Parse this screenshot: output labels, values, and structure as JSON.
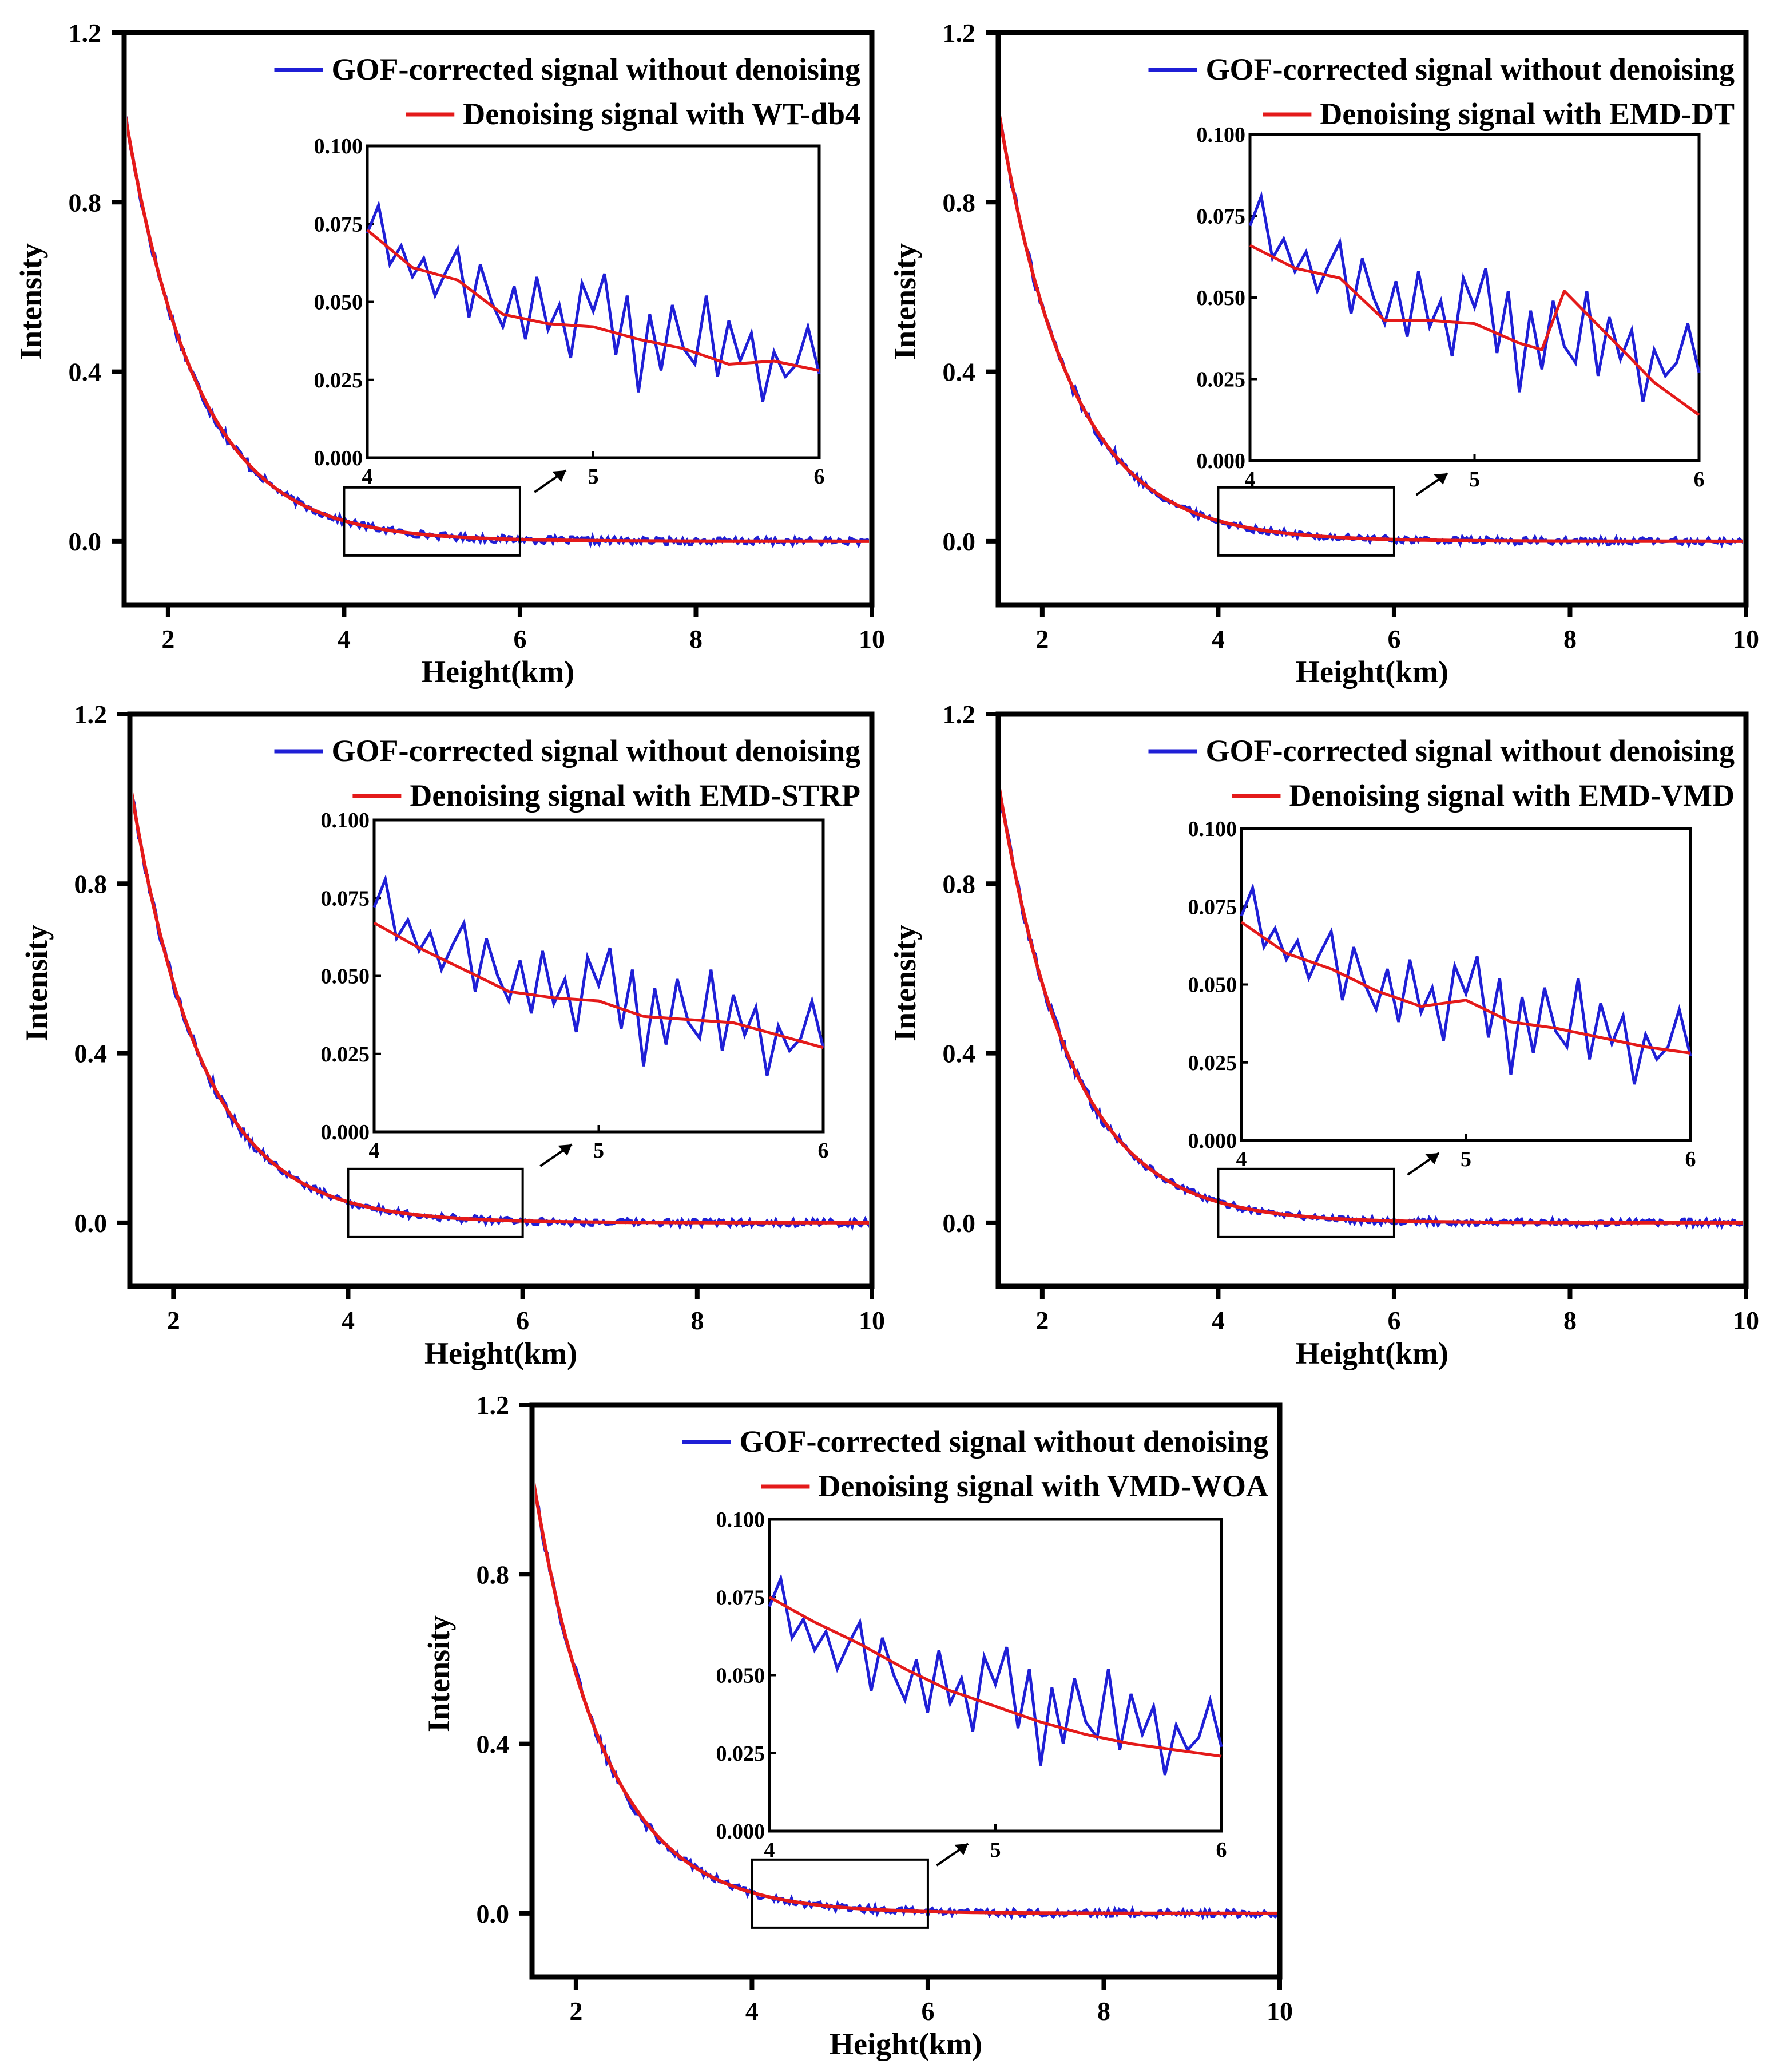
{
  "colors": {
    "raw": "#1f1fd6",
    "denoised": "#e41a1a",
    "axis": "#000000"
  },
  "chart_data": [
    {
      "type": "line",
      "xlabel": "Height(km)",
      "ylabel": "Intensity",
      "xlim": [
        1.5,
        10
      ],
      "ylim": [
        -0.15,
        1.2
      ],
      "xticks": [
        2,
        4,
        6,
        8,
        10
      ],
      "yticks": [
        0.0,
        0.4,
        0.8,
        1.2
      ],
      "zoom_box": {
        "x": [
          4,
          6
        ],
        "y": [
          0.0,
          0.1
        ]
      },
      "legend": {
        "position": "top-right",
        "entries": [
          "GOF-corrected signal without denoising",
          "Denoising signal with WT-db4"
        ]
      },
      "series": [
        {
          "name": "GOF-corrected signal without denoising",
          "color": "#1f1fd6",
          "decay": {
            "amplitude": 1.02,
            "rate": 1.22,
            "start": 1.5
          },
          "noise": 0.009
        },
        {
          "name": "Denoising signal with WT-db4",
          "color": "#e41a1a",
          "decay": {
            "amplitude": 1.02,
            "rate": 1.22,
            "start": 1.5
          }
        }
      ],
      "inset": {
        "xlim": [
          4,
          6
        ],
        "ylim": [
          0,
          0.1
        ],
        "xticks": [
          4,
          5,
          6
        ],
        "yticks": [
          0.0,
          0.025,
          0.05,
          0.075,
          0.1
        ],
        "ytick_labels": [
          "0.000",
          "0.025",
          "0.050",
          "0.075",
          "0.100"
        ],
        "raw": {
          "x": [
            4.0,
            4.05,
            4.1,
            4.15,
            4.2,
            4.25,
            4.3,
            4.35,
            4.4,
            4.45,
            4.5,
            4.55,
            4.6,
            4.65,
            4.7,
            4.75,
            4.8,
            4.85,
            4.9,
            4.95,
            5.0,
            5.05,
            5.1,
            5.15,
            5.2,
            5.25,
            5.3,
            5.35,
            5.4,
            5.45,
            5.5,
            5.55,
            5.6,
            5.65,
            5.7,
            5.75,
            5.8,
            5.85,
            5.9,
            5.95,
            6.0
          ],
          "y": [
            0.072,
            0.081,
            0.062,
            0.068,
            0.058,
            0.064,
            0.052,
            0.06,
            0.067,
            0.045,
            0.062,
            0.05,
            0.042,
            0.055,
            0.038,
            0.058,
            0.041,
            0.049,
            0.032,
            0.056,
            0.047,
            0.059,
            0.033,
            0.052,
            0.021,
            0.046,
            0.028,
            0.049,
            0.035,
            0.03,
            0.052,
            0.026,
            0.044,
            0.031,
            0.04,
            0.018,
            0.034,
            0.026,
            0.03,
            0.042,
            0.027
          ]
        },
        "smooth": {
          "x": [
            4.0,
            4.2,
            4.4,
            4.6,
            4.8,
            5.0,
            5.2,
            5.4,
            5.6,
            5.8,
            6.0
          ],
          "y": [
            0.073,
            0.061,
            0.057,
            0.046,
            0.043,
            0.042,
            0.038,
            0.035,
            0.03,
            0.031,
            0.028
          ]
        }
      }
    },
    {
      "type": "line",
      "xlabel": "Height(km)",
      "ylabel": "Intensity",
      "xlim": [
        1.5,
        10
      ],
      "ylim": [
        -0.15,
        1.2
      ],
      "xticks": [
        2,
        4,
        6,
        8,
        10
      ],
      "yticks": [
        0.0,
        0.4,
        0.8,
        1.2
      ],
      "zoom_box": {
        "x": [
          4,
          6
        ],
        "y": [
          0.0,
          0.1
        ]
      },
      "legend": {
        "position": "top-right",
        "entries": [
          "GOF-corrected signal without denoising",
          "Denoising signal with EMD-DT"
        ]
      },
      "series": [
        {
          "name": "GOF-corrected signal without denoising",
          "color": "#1f1fd6",
          "decay": {
            "amplitude": 1.02,
            "rate": 1.22,
            "start": 1.5
          },
          "noise": 0.009
        },
        {
          "name": "Denoising signal with EMD-DT",
          "color": "#e41a1a",
          "decay": {
            "amplitude": 1.02,
            "rate": 1.22,
            "start": 1.5
          }
        }
      ],
      "inset": {
        "xlim": [
          4,
          6
        ],
        "ylim": [
          0,
          0.1
        ],
        "xticks": [
          4,
          5,
          6
        ],
        "yticks": [
          0.0,
          0.025,
          0.05,
          0.075,
          0.1
        ],
        "ytick_labels": [
          "0.000",
          "0.025",
          "0.050",
          "0.075",
          "0.100"
        ],
        "raw": {
          "x": [
            4.0,
            4.05,
            4.1,
            4.15,
            4.2,
            4.25,
            4.3,
            4.35,
            4.4,
            4.45,
            4.5,
            4.55,
            4.6,
            4.65,
            4.7,
            4.75,
            4.8,
            4.85,
            4.9,
            4.95,
            5.0,
            5.05,
            5.1,
            5.15,
            5.2,
            5.25,
            5.3,
            5.35,
            5.4,
            5.45,
            5.5,
            5.55,
            5.6,
            5.65,
            5.7,
            5.75,
            5.8,
            5.85,
            5.9,
            5.95,
            6.0
          ],
          "y": [
            0.072,
            0.081,
            0.062,
            0.068,
            0.058,
            0.064,
            0.052,
            0.06,
            0.067,
            0.045,
            0.062,
            0.05,
            0.042,
            0.055,
            0.038,
            0.058,
            0.041,
            0.049,
            0.032,
            0.056,
            0.047,
            0.059,
            0.033,
            0.052,
            0.021,
            0.046,
            0.028,
            0.049,
            0.035,
            0.03,
            0.052,
            0.026,
            0.044,
            0.031,
            0.04,
            0.018,
            0.034,
            0.026,
            0.03,
            0.042,
            0.027
          ]
        },
        "smooth": {
          "x": [
            4.0,
            4.2,
            4.4,
            4.6,
            4.8,
            5.0,
            5.2,
            5.3,
            5.4,
            5.6,
            5.8,
            6.0
          ],
          "y": [
            0.066,
            0.059,
            0.056,
            0.043,
            0.043,
            0.042,
            0.036,
            0.034,
            0.052,
            0.038,
            0.024,
            0.014
          ]
        }
      }
    },
    {
      "type": "line",
      "xlabel": "Height(km)",
      "ylabel": "Intensity",
      "xlim": [
        1.5,
        10
      ],
      "ylim": [
        -0.15,
        1.2
      ],
      "xticks": [
        2,
        4,
        6,
        8,
        10
      ],
      "yticks": [
        0.0,
        0.4,
        0.8,
        1.2
      ],
      "zoom_box": {
        "x": [
          4,
          6
        ],
        "y": [
          0.0,
          0.1
        ]
      },
      "legend": {
        "position": "top-right",
        "entries": [
          "GOF-corrected signal without denoising",
          "Denoising signal with EMD-STRP"
        ]
      },
      "series": [
        {
          "name": "GOF-corrected signal without denoising",
          "color": "#1f1fd6",
          "decay": {
            "amplitude": 1.04,
            "rate": 1.22,
            "start": 1.5
          },
          "noise": 0.009
        },
        {
          "name": "Denoising signal with EMD-STRP",
          "color": "#e41a1a",
          "decay": {
            "amplitude": 1.04,
            "rate": 1.22,
            "start": 1.5
          }
        }
      ],
      "inset": {
        "xlim": [
          4,
          6
        ],
        "ylim": [
          0,
          0.1
        ],
        "xticks": [
          4,
          5,
          6
        ],
        "yticks": [
          0.0,
          0.025,
          0.05,
          0.075,
          0.1
        ],
        "ytick_labels": [
          "0.000",
          "0.025",
          "0.050",
          "0.075",
          "0.100"
        ],
        "raw": {
          "x": [
            4.0,
            4.05,
            4.1,
            4.15,
            4.2,
            4.25,
            4.3,
            4.35,
            4.4,
            4.45,
            4.5,
            4.55,
            4.6,
            4.65,
            4.7,
            4.75,
            4.8,
            4.85,
            4.9,
            4.95,
            5.0,
            5.05,
            5.1,
            5.15,
            5.2,
            5.25,
            5.3,
            5.35,
            5.4,
            5.45,
            5.5,
            5.55,
            5.6,
            5.65,
            5.7,
            5.75,
            5.8,
            5.85,
            5.9,
            5.95,
            6.0
          ],
          "y": [
            0.072,
            0.081,
            0.062,
            0.068,
            0.058,
            0.064,
            0.052,
            0.06,
            0.067,
            0.045,
            0.062,
            0.05,
            0.042,
            0.055,
            0.038,
            0.058,
            0.041,
            0.049,
            0.032,
            0.056,
            0.047,
            0.059,
            0.033,
            0.052,
            0.021,
            0.046,
            0.028,
            0.049,
            0.035,
            0.03,
            0.052,
            0.026,
            0.044,
            0.031,
            0.04,
            0.018,
            0.034,
            0.026,
            0.03,
            0.042,
            0.027
          ]
        },
        "smooth": {
          "x": [
            4.0,
            4.2,
            4.4,
            4.6,
            4.8,
            5.0,
            5.2,
            5.4,
            5.6,
            5.8,
            6.0
          ],
          "y": [
            0.067,
            0.059,
            0.052,
            0.045,
            0.043,
            0.042,
            0.037,
            0.036,
            0.035,
            0.031,
            0.027
          ]
        }
      }
    },
    {
      "type": "line",
      "xlabel": "Height(km)",
      "ylabel": "Intensity",
      "xlim": [
        1.5,
        10
      ],
      "ylim": [
        -0.15,
        1.2
      ],
      "xticks": [
        2,
        4,
        6,
        8,
        10
      ],
      "yticks": [
        0.0,
        0.4,
        0.8,
        1.2
      ],
      "zoom_box": {
        "x": [
          4,
          6
        ],
        "y": [
          0.0,
          0.1
        ]
      },
      "legend": {
        "position": "top-right",
        "entries": [
          "GOF-corrected signal without denoising",
          "Denoising signal with EMD-VMD"
        ]
      },
      "series": [
        {
          "name": "GOF-corrected signal without denoising",
          "color": "#1f1fd6",
          "decay": {
            "amplitude": 1.04,
            "rate": 1.22,
            "start": 1.5
          },
          "noise": 0.009
        },
        {
          "name": "Denoising signal with EMD-VMD",
          "color": "#e41a1a",
          "decay": {
            "amplitude": 1.04,
            "rate": 1.22,
            "start": 1.5
          }
        }
      ],
      "inset": {
        "xlim": [
          4,
          6
        ],
        "ylim": [
          0,
          0.1
        ],
        "xticks": [
          4,
          5,
          6
        ],
        "yticks": [
          0.0,
          0.025,
          0.05,
          0.075,
          0.1
        ],
        "ytick_labels": [
          "0.000",
          "0.025",
          "0.050",
          "0.075",
          "0.100"
        ],
        "raw": {
          "x": [
            4.0,
            4.05,
            4.1,
            4.15,
            4.2,
            4.25,
            4.3,
            4.35,
            4.4,
            4.45,
            4.5,
            4.55,
            4.6,
            4.65,
            4.7,
            4.75,
            4.8,
            4.85,
            4.9,
            4.95,
            5.0,
            5.05,
            5.1,
            5.15,
            5.2,
            5.25,
            5.3,
            5.35,
            5.4,
            5.45,
            5.5,
            5.55,
            5.6,
            5.65,
            5.7,
            5.75,
            5.8,
            5.85,
            5.9,
            5.95,
            6.0
          ],
          "y": [
            0.072,
            0.081,
            0.062,
            0.068,
            0.058,
            0.064,
            0.052,
            0.06,
            0.067,
            0.045,
            0.062,
            0.05,
            0.042,
            0.055,
            0.038,
            0.058,
            0.041,
            0.049,
            0.032,
            0.056,
            0.047,
            0.059,
            0.033,
            0.052,
            0.021,
            0.046,
            0.028,
            0.049,
            0.035,
            0.03,
            0.052,
            0.026,
            0.044,
            0.031,
            0.04,
            0.018,
            0.034,
            0.026,
            0.03,
            0.042,
            0.027
          ]
        },
        "smooth": {
          "x": [
            4.0,
            4.2,
            4.4,
            4.6,
            4.8,
            5.0,
            5.2,
            5.4,
            5.6,
            5.8,
            6.0
          ],
          "y": [
            0.07,
            0.06,
            0.055,
            0.048,
            0.043,
            0.045,
            0.038,
            0.036,
            0.033,
            0.03,
            0.028
          ]
        }
      }
    },
    {
      "type": "line",
      "xlabel": "Height(km)",
      "ylabel": "Intensity",
      "xlim": [
        1.5,
        10
      ],
      "ylim": [
        -0.15,
        1.2
      ],
      "xticks": [
        2,
        4,
        6,
        8,
        10
      ],
      "yticks": [
        0.0,
        0.4,
        0.8,
        1.2
      ],
      "zoom_box": {
        "x": [
          4,
          6
        ],
        "y": [
          0.0,
          0.1
        ]
      },
      "legend": {
        "position": "top-right",
        "entries": [
          "GOF-corrected signal without denoising",
          "Denoising signal with VMD-WOA"
        ]
      },
      "series": [
        {
          "name": "GOF-corrected signal without denoising",
          "color": "#1f1fd6",
          "decay": {
            "amplitude": 1.04,
            "rate": 1.22,
            "start": 1.5
          },
          "noise": 0.009
        },
        {
          "name": "Denoising signal with VMD-WOA",
          "color": "#e41a1a",
          "decay": {
            "amplitude": 1.04,
            "rate": 1.22,
            "start": 1.5
          }
        }
      ],
      "inset": {
        "xlim": [
          4,
          6
        ],
        "ylim": [
          0,
          0.1
        ],
        "xticks": [
          4,
          5,
          6
        ],
        "yticks": [
          0.0,
          0.025,
          0.05,
          0.075,
          0.1
        ],
        "ytick_labels": [
          "0.000",
          "0.025",
          "0.050",
          "0.075",
          "0.100"
        ],
        "raw": {
          "x": [
            4.0,
            4.05,
            4.1,
            4.15,
            4.2,
            4.25,
            4.3,
            4.35,
            4.4,
            4.45,
            4.5,
            4.55,
            4.6,
            4.65,
            4.7,
            4.75,
            4.8,
            4.85,
            4.9,
            4.95,
            5.0,
            5.05,
            5.1,
            5.15,
            5.2,
            5.25,
            5.3,
            5.35,
            5.4,
            5.45,
            5.5,
            5.55,
            5.6,
            5.65,
            5.7,
            5.75,
            5.8,
            5.85,
            5.9,
            5.95,
            6.0
          ],
          "y": [
            0.072,
            0.081,
            0.062,
            0.068,
            0.058,
            0.064,
            0.052,
            0.06,
            0.067,
            0.045,
            0.062,
            0.05,
            0.042,
            0.055,
            0.038,
            0.058,
            0.041,
            0.049,
            0.032,
            0.056,
            0.047,
            0.059,
            0.033,
            0.052,
            0.021,
            0.046,
            0.028,
            0.049,
            0.035,
            0.03,
            0.052,
            0.026,
            0.044,
            0.031,
            0.04,
            0.018,
            0.034,
            0.026,
            0.03,
            0.042,
            0.027
          ]
        },
        "smooth": {
          "x": [
            4.0,
            4.2,
            4.4,
            4.6,
            4.8,
            5.0,
            5.2,
            5.4,
            5.6,
            5.8,
            6.0
          ],
          "y": [
            0.075,
            0.067,
            0.06,
            0.052,
            0.045,
            0.04,
            0.035,
            0.031,
            0.028,
            0.026,
            0.024
          ]
        }
      }
    }
  ]
}
